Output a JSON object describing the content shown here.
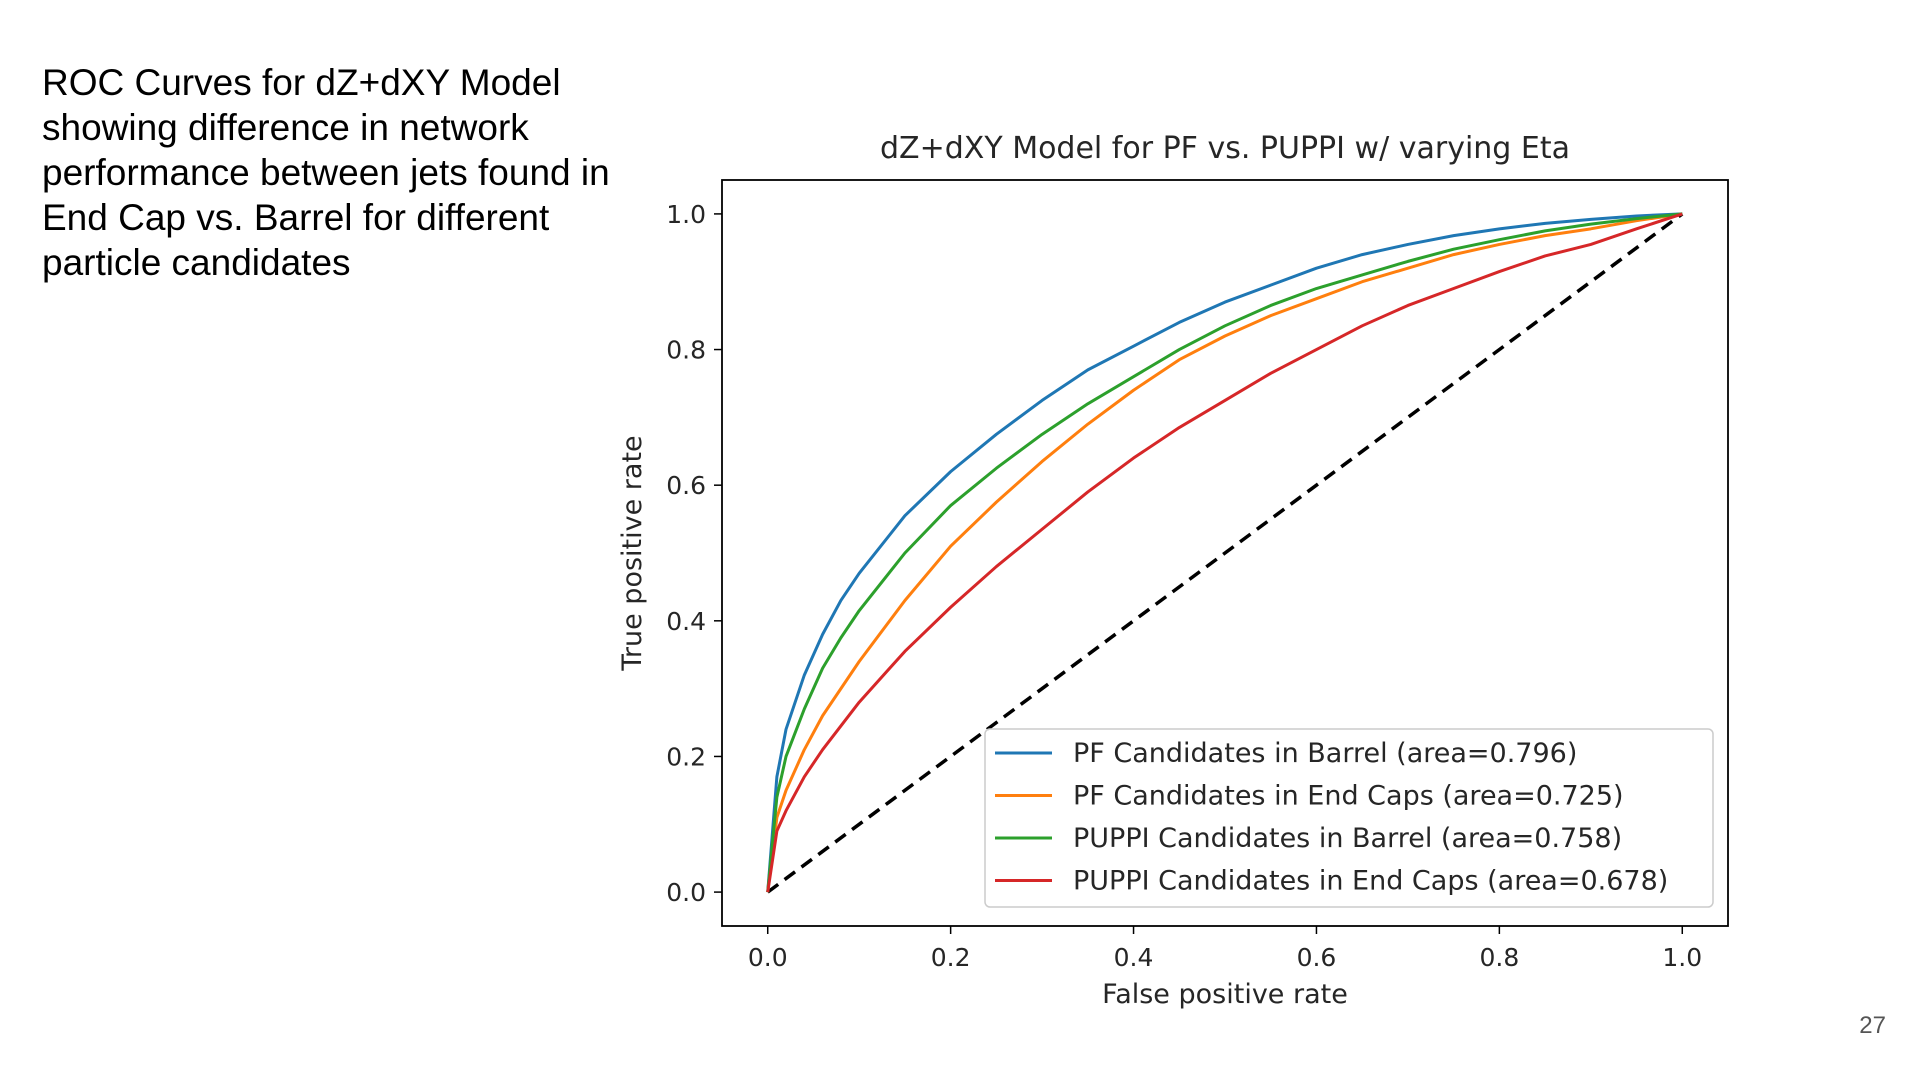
{
  "slide": {
    "text": "ROC Curves for dZ+dXY Model\nshowing difference in network\nperformance between jets found in\nEnd Cap vs. Barrel for different\nparticle candidates",
    "page_number": "27"
  },
  "chart_data": {
    "type": "line",
    "title": "dZ+dXY Model for PF vs. PUPPI w/ varying Eta",
    "xlabel": "False positive rate",
    "ylabel": "True positive rate",
    "xlim": [
      -0.05,
      1.05
    ],
    "ylim": [
      -0.05,
      1.05
    ],
    "xticks": [
      0.0,
      0.2,
      0.4,
      0.6,
      0.8,
      1.0
    ],
    "xtick_labels": [
      "0.0",
      "0.2",
      "0.4",
      "0.6",
      "0.8",
      "1.0"
    ],
    "yticks": [
      0.0,
      0.2,
      0.4,
      0.6,
      0.8,
      1.0
    ],
    "ytick_labels": [
      "0.0",
      "0.2",
      "0.4",
      "0.6",
      "0.8",
      "1.0"
    ],
    "grid": false,
    "legend_position": "lower-right",
    "series": [
      {
        "name": "PF Candidates in Barrel (area=0.796)",
        "color": "#1f77b4",
        "x": [
          0,
          0.01,
          0.02,
          0.04,
          0.06,
          0.08,
          0.1,
          0.15,
          0.2,
          0.25,
          0.3,
          0.35,
          0.4,
          0.45,
          0.5,
          0.55,
          0.6,
          0.65,
          0.7,
          0.75,
          0.8,
          0.85,
          0.9,
          0.95,
          1.0
        ],
        "y": [
          0,
          0.17,
          0.24,
          0.32,
          0.38,
          0.43,
          0.47,
          0.555,
          0.62,
          0.675,
          0.725,
          0.77,
          0.805,
          0.84,
          0.87,
          0.895,
          0.92,
          0.94,
          0.955,
          0.968,
          0.978,
          0.986,
          0.992,
          0.997,
          1.0
        ]
      },
      {
        "name": "PF Candidates in End Caps (area=0.725)",
        "color": "#ff7f0e",
        "x": [
          0,
          0.01,
          0.02,
          0.04,
          0.06,
          0.08,
          0.1,
          0.15,
          0.2,
          0.25,
          0.3,
          0.35,
          0.4,
          0.45,
          0.5,
          0.55,
          0.6,
          0.65,
          0.7,
          0.75,
          0.8,
          0.85,
          0.9,
          0.95,
          1.0
        ],
        "y": [
          0,
          0.11,
          0.15,
          0.21,
          0.26,
          0.3,
          0.34,
          0.43,
          0.51,
          0.575,
          0.635,
          0.69,
          0.74,
          0.785,
          0.82,
          0.85,
          0.875,
          0.9,
          0.92,
          0.94,
          0.955,
          0.968,
          0.978,
          0.99,
          1.0
        ]
      },
      {
        "name": "PUPPI Candidates in Barrel (area=0.758)",
        "color": "#2ca02c",
        "x": [
          0,
          0.01,
          0.02,
          0.04,
          0.06,
          0.08,
          0.1,
          0.15,
          0.2,
          0.25,
          0.3,
          0.35,
          0.4,
          0.45,
          0.5,
          0.55,
          0.6,
          0.65,
          0.7,
          0.75,
          0.8,
          0.85,
          0.9,
          0.95,
          1.0
        ],
        "y": [
          0,
          0.14,
          0.2,
          0.27,
          0.33,
          0.375,
          0.415,
          0.5,
          0.57,
          0.625,
          0.675,
          0.72,
          0.76,
          0.8,
          0.835,
          0.865,
          0.89,
          0.91,
          0.93,
          0.948,
          0.962,
          0.975,
          0.985,
          0.993,
          1.0
        ]
      },
      {
        "name": "PUPPI Candidates in End Caps (area=0.678)",
        "color": "#d62728",
        "x": [
          0,
          0.01,
          0.02,
          0.04,
          0.06,
          0.08,
          0.1,
          0.15,
          0.2,
          0.25,
          0.3,
          0.35,
          0.4,
          0.45,
          0.5,
          0.55,
          0.6,
          0.65,
          0.7,
          0.75,
          0.8,
          0.85,
          0.9,
          0.95,
          1.0
        ],
        "y": [
          0,
          0.09,
          0.12,
          0.17,
          0.21,
          0.245,
          0.28,
          0.355,
          0.42,
          0.48,
          0.535,
          0.59,
          0.64,
          0.685,
          0.725,
          0.765,
          0.8,
          0.835,
          0.865,
          0.89,
          0.915,
          0.938,
          0.955,
          0.978,
          1.0
        ]
      }
    ],
    "reference_line": {
      "x": [
        0,
        1
      ],
      "y": [
        0,
        1
      ],
      "color": "#000000",
      "style": "dashed"
    }
  }
}
